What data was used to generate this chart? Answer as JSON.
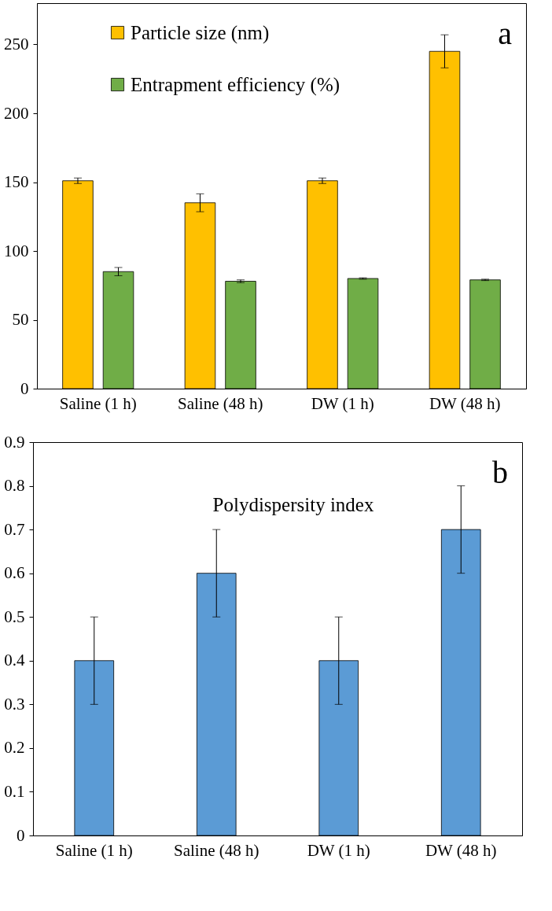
{
  "chart_data": [
    {
      "type": "bar",
      "categories": [
        "Saline (1 h)",
        "Saline (48 h)",
        "DW (1 h)",
        "DW (48 h)"
      ],
      "series": [
        {
          "name": "Particle size (nm)",
          "color": "#ffc000",
          "values": [
            151,
            135,
            151,
            245
          ],
          "errors": [
            2,
            6.5,
            2,
            12
          ]
        },
        {
          "name": "Entrapment efficiency (%)",
          "color": "#70ad47",
          "values": [
            85,
            78,
            80,
            79
          ],
          "errors": [
            3,
            1,
            0.5,
            0.5
          ]
        }
      ],
      "ylim": [
        0,
        280
      ],
      "yticks": [
        0,
        50,
        100,
        150,
        200,
        250
      ],
      "grid": false,
      "legend": "top left",
      "annotations": [
        "a"
      ]
    },
    {
      "type": "bar",
      "categories": [
        "Saline (1 h)",
        "Saline (48 h)",
        "DW (1 h)",
        "DW (48 h)"
      ],
      "series": [
        {
          "color": "#5b9bd5",
          "values": [
            0.4,
            0.6,
            0.4,
            0.7
          ],
          "errors": [
            0.1,
            0.1,
            0.1,
            0.1
          ]
        }
      ],
      "ylim": [
        0,
        0.9
      ],
      "yticks": [
        0,
        0.1,
        0.2,
        0.3,
        0.4,
        0.5,
        0.6,
        0.7,
        0.8,
        0.9
      ],
      "grid": false,
      "legend": false,
      "annotations": [
        "b",
        "Polydispersity index"
      ]
    }
  ]
}
